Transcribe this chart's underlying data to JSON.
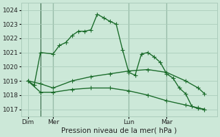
{
  "background_color": "#cce8d8",
  "grid_color": "#aaccbb",
  "line_color": "#1a6b2a",
  "title": "Pression niveau de la mer( hPa )",
  "ylim": [
    1016.5,
    1024.5
  ],
  "yticks": [
    1017,
    1018,
    1019,
    1020,
    1021,
    1022,
    1023,
    1024
  ],
  "xtick_positions": [
    0,
    4,
    16,
    22
  ],
  "xtick_labels": [
    "Dim",
    "Mer",
    "Lun",
    "Mar"
  ],
  "vline_positions": [
    2,
    4,
    16,
    22
  ],
  "xlim": [
    -1,
    30
  ],
  "s1_x": [
    0,
    1,
    2,
    4,
    5,
    6,
    7,
    8,
    9,
    10,
    11,
    12,
    13,
    14,
    15,
    16,
    17,
    18,
    19,
    20,
    21,
    22,
    23,
    24,
    25,
    26,
    27,
    28
  ],
  "s1_y": [
    1019.0,
    1018.7,
    1021.0,
    1020.9,
    1021.5,
    1021.7,
    1022.2,
    1022.5,
    1022.5,
    1022.6,
    1023.7,
    1023.45,
    1023.2,
    1023.0,
    1021.2,
    1019.6,
    1019.4,
    1020.9,
    1021.0,
    1020.7,
    1020.3,
    1019.5,
    1019.2,
    1018.5,
    1018.1,
    1017.2,
    1017.05,
    1017.0
  ],
  "s2_x": [
    0,
    2,
    4,
    7,
    10,
    13,
    16,
    19,
    22,
    25,
    27,
    28
  ],
  "s2_y": [
    1019.0,
    1018.8,
    1018.5,
    1019.0,
    1019.3,
    1019.5,
    1019.7,
    1019.8,
    1019.6,
    1019.0,
    1018.5,
    1018.1
  ],
  "s3_x": [
    0,
    2,
    4,
    7,
    10,
    13,
    16,
    19,
    22,
    25,
    27,
    28
  ],
  "s3_y": [
    1019.0,
    1018.2,
    1018.2,
    1018.4,
    1018.5,
    1018.5,
    1018.3,
    1018.0,
    1017.6,
    1017.3,
    1017.1,
    1017.0
  ],
  "markersize": 2.5
}
